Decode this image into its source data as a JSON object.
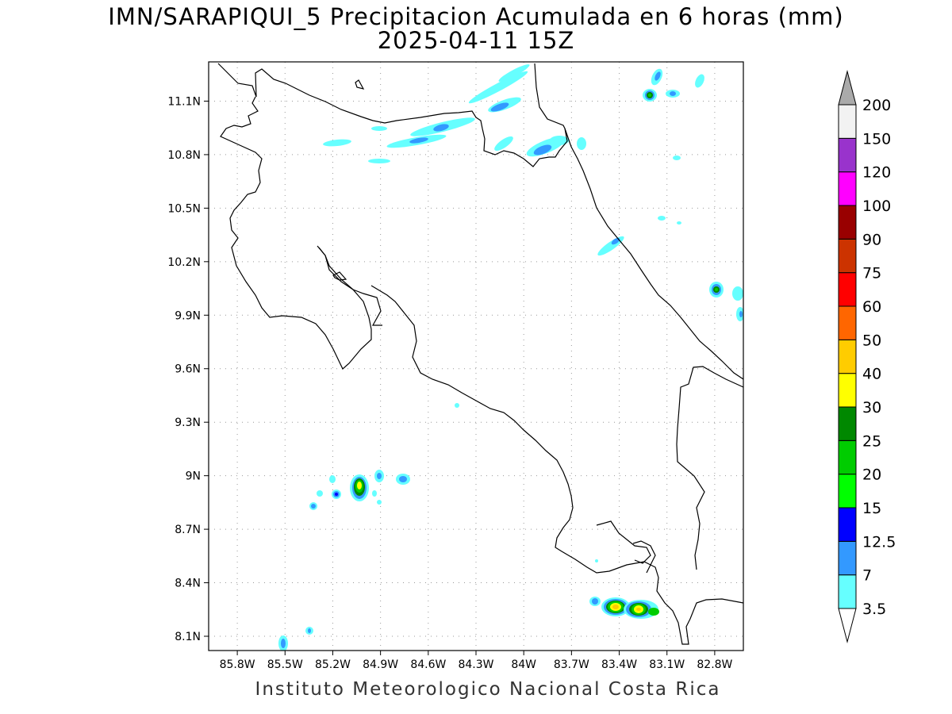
{
  "title": {
    "line1": "IMN/SARAPIQUI_5 Precipitacion Acumulada en 6 horas (mm)",
    "line2": "2025-04-11 15Z"
  },
  "footer": "Instituto Meteorologico Nacional Costa Rica",
  "map": {
    "lon_range": [
      -85.98,
      -82.62
    ],
    "lat_range": [
      8.02,
      11.32
    ],
    "grid": true,
    "lat_ticks": [
      "11.1N",
      "10.8N",
      "10.5N",
      "10.2N",
      "9.9N",
      "9.6N",
      "9.3N",
      "9N",
      "8.7N",
      "8.4N",
      "8.1N"
    ],
    "lon_ticks": [
      "85.8W",
      "85.5W",
      "85.2W",
      "84.9W",
      "84.6W",
      "84.3W",
      "84W",
      "83.7W",
      "83.4W",
      "83.1W",
      "82.8W"
    ]
  },
  "colorbar": {
    "labels": [
      "3.5",
      "7",
      "12.5",
      "15",
      "20",
      "25",
      "30",
      "40",
      "50",
      "60",
      "75",
      "90",
      "100",
      "120",
      "150",
      "200"
    ],
    "colors": [
      "#ffffff",
      "#66ffff",
      "#3399ff",
      "#0000ff",
      "#00ff00",
      "#00cc00",
      "#008800",
      "#ffff00",
      "#ffcc00",
      "#ff6600",
      "#ff0000",
      "#cc3300",
      "#990000",
      "#ff00ff",
      "#9933cc",
      "#f2f2f2",
      "#aaaaaa"
    ]
  }
}
